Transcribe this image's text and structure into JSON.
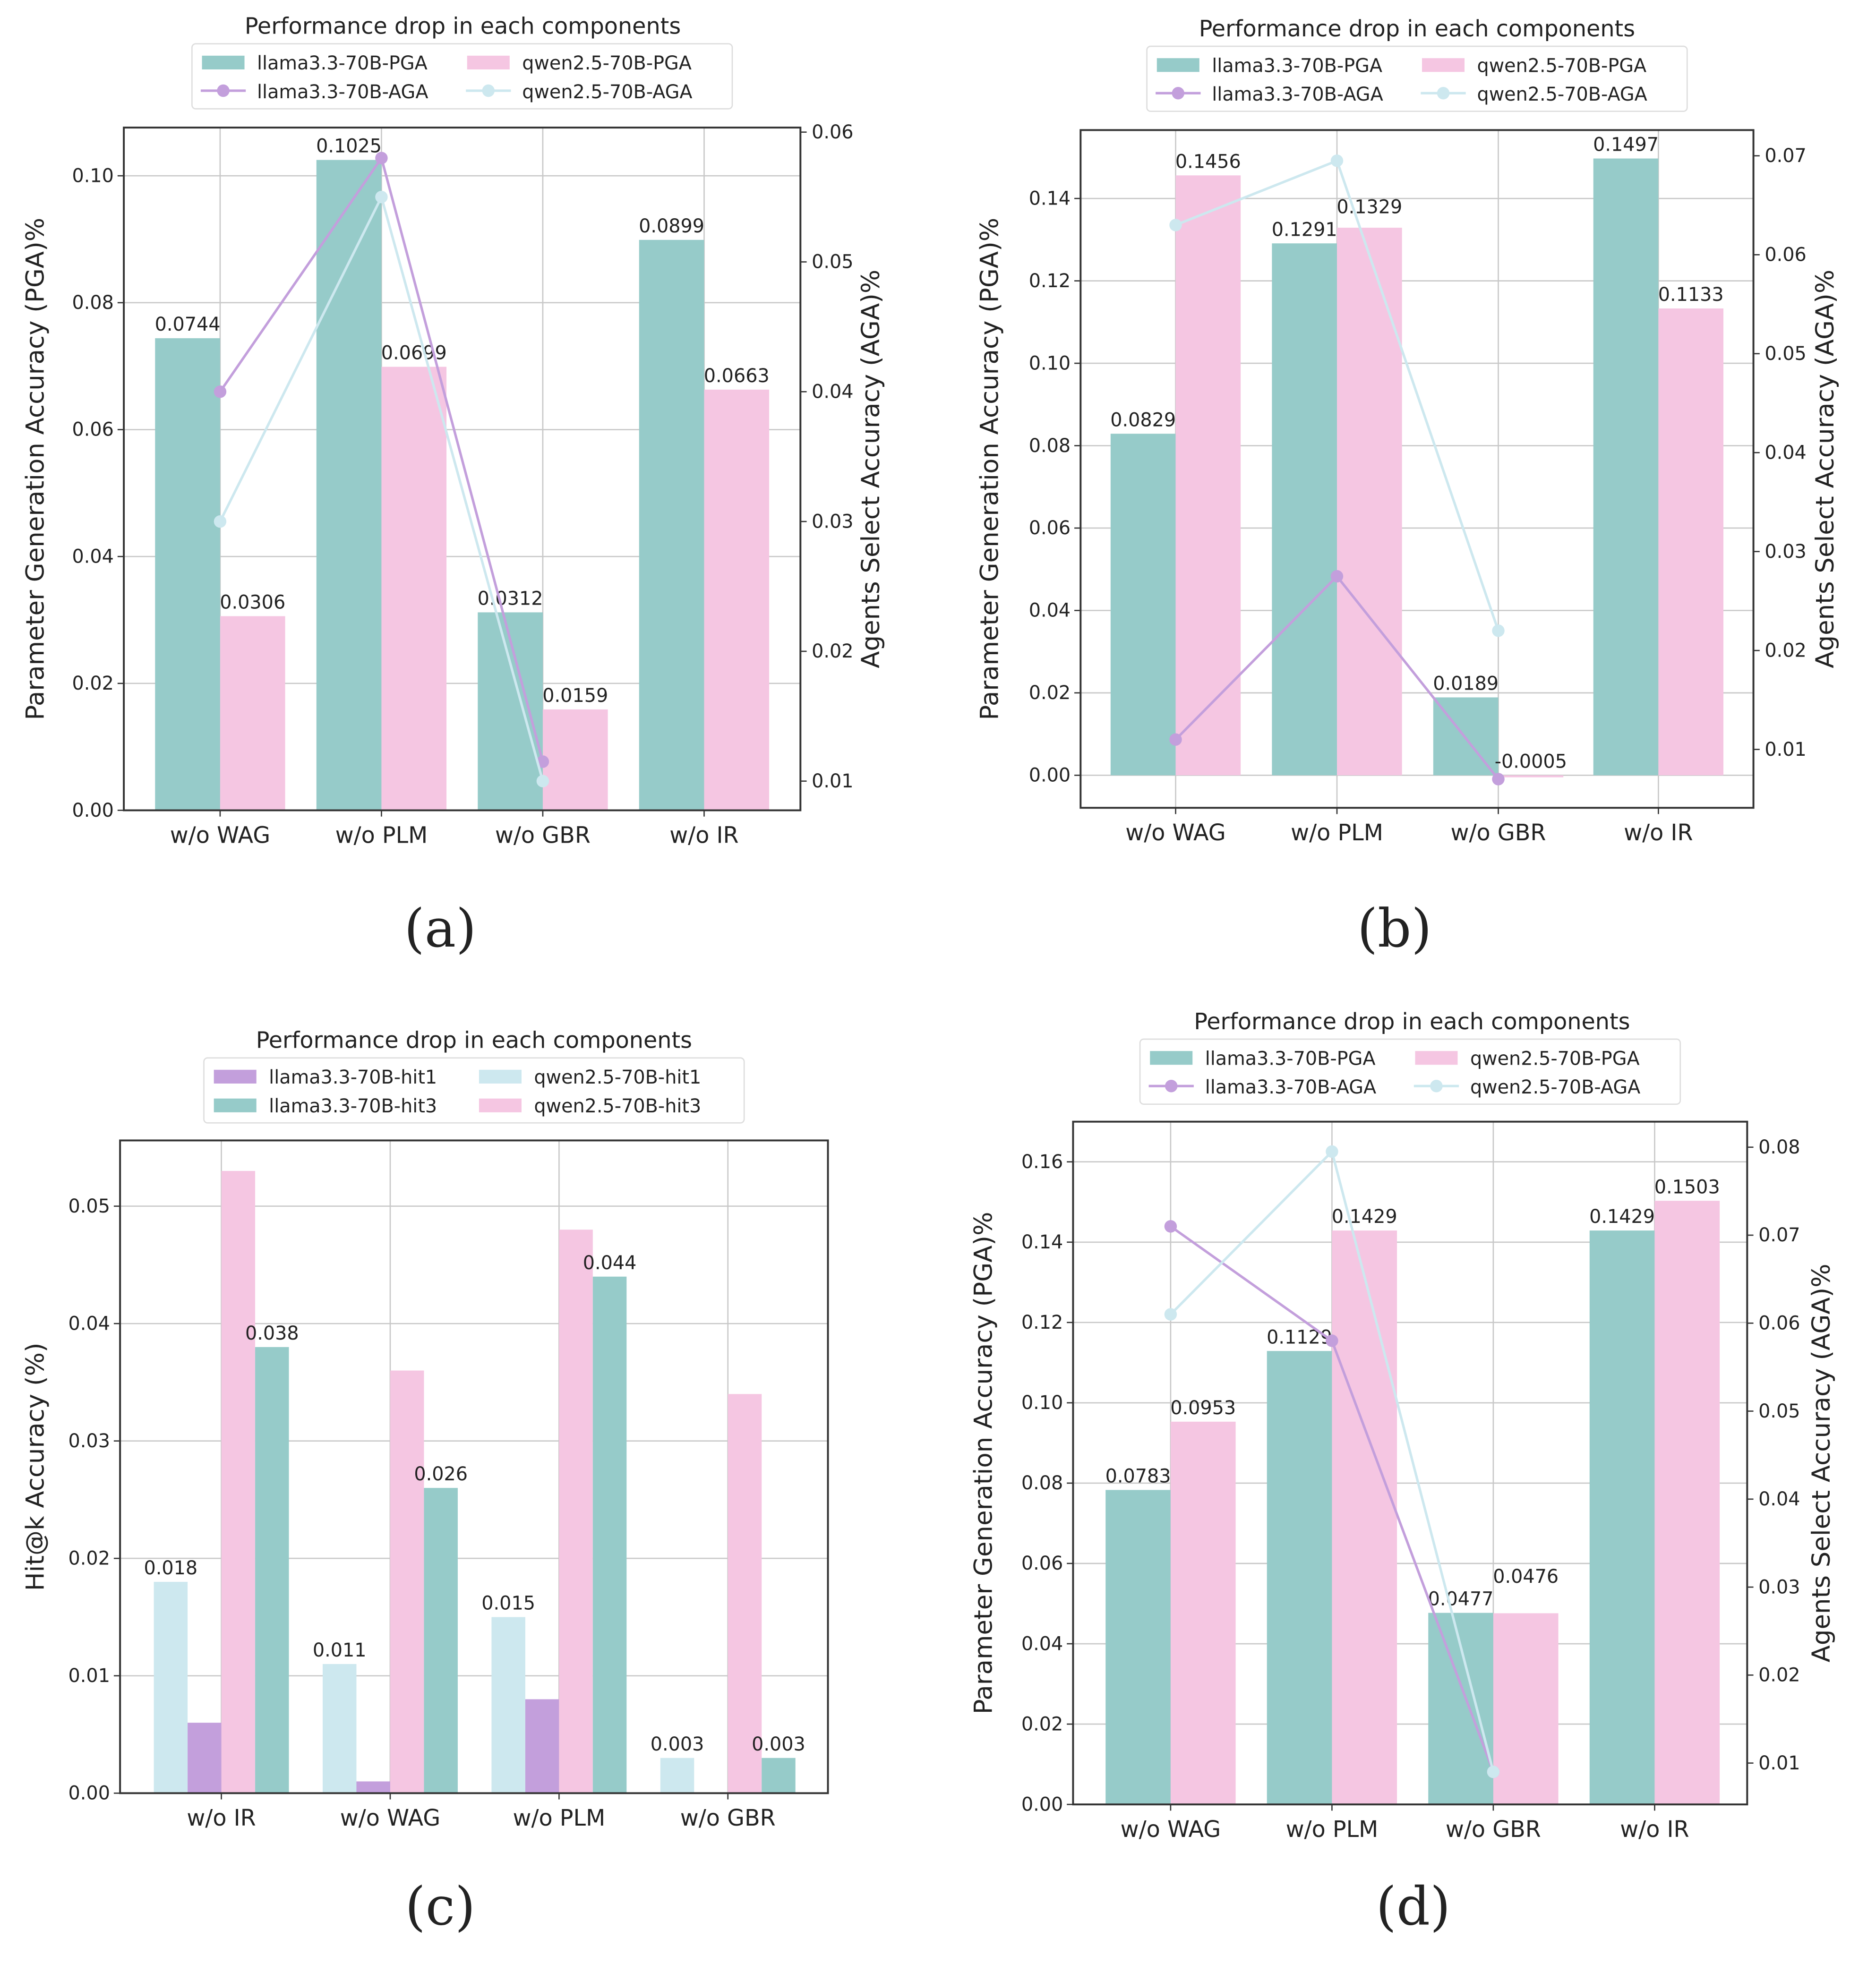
{
  "colors": {
    "llama_pga": "#96cbc9",
    "qwen_pga": "#f5c6e2",
    "llama_aga": "#c39fdc",
    "qwen_aga": "#cde8ef",
    "llama_hit1": "#c39fdc",
    "qwen_hit1": "#cde8ef",
    "llama_hit3": "#96cbc9",
    "qwen_hit3": "#f5c6e2"
  },
  "chart_data": [
    {
      "type": "bar+line",
      "caption": "(a)",
      "title": "Performance drop in each components",
      "ylabel": "Parameter Generation Accuracy (PGA)%",
      "y2label": "Agents Select Accuracy (AGA)%",
      "categories": [
        "w/o WAG",
        "w/o PLM",
        "w/o GBR",
        "w/o IR"
      ],
      "ylim": [
        0,
        0.1076
      ],
      "y2lim": [
        0.00775,
        0.06035
      ],
      "yticks": [
        "0.00",
        "0.02",
        "0.04",
        "0.06",
        "0.08",
        "0.10"
      ],
      "y2ticks": [
        "0.01",
        "0.02",
        "0.03",
        "0.04",
        "0.05",
        "0.06"
      ],
      "bars": [
        {
          "name": "llama3.3-70B-PGA",
          "color": "llama_pga",
          "values": [
            0.0744,
            0.1025,
            0.0312,
            0.0899
          ],
          "labels": [
            "0.0744",
            "0.1025",
            "0.0312",
            "0.0899"
          ]
        },
        {
          "name": "qwen2.5-70B-PGA",
          "color": "qwen_pga",
          "values": [
            0.0306,
            0.0699,
            0.0159,
            0.0663
          ],
          "labels": [
            "0.0306",
            "0.0699",
            "0.0159",
            "0.0663"
          ]
        }
      ],
      "lines": [
        {
          "name": "llama3.3-70B-AGA",
          "color": "llama_aga",
          "values": [
            0.04,
            0.058,
            0.0115,
            null
          ]
        },
        {
          "name": "qwen2.5-70B-AGA",
          "color": "qwen_aga",
          "values": [
            0.03,
            0.055,
            0.01,
            null
          ]
        }
      ]
    },
    {
      "type": "bar+line",
      "caption": "(b)",
      "title": "Performance drop in each components",
      "ylabel": "Parameter Generation Accuracy (PGA)%",
      "y2label": "Agents Select Accuracy (AGA)%",
      "categories": [
        "w/o WAG",
        "w/o PLM",
        "w/o GBR",
        "w/o IR"
      ],
      "ylim": [
        -0.0079,
        0.1566
      ],
      "y2lim": [
        0.0041,
        0.0726
      ],
      "yticks": [
        "0.00",
        "0.02",
        "0.04",
        "0.06",
        "0.08",
        "0.10",
        "0.12",
        "0.14"
      ],
      "y2ticks": [
        "0.01",
        "0.02",
        "0.03",
        "0.04",
        "0.05",
        "0.06",
        "0.07"
      ],
      "bars": [
        {
          "name": "llama3.3-70B-PGA",
          "color": "llama_pga",
          "values": [
            0.0829,
            0.1291,
            0.0189,
            0.1497
          ],
          "labels": [
            "0.0829",
            "0.1291",
            "0.0189",
            "0.1497"
          ]
        },
        {
          "name": "qwen2.5-70B-PGA",
          "color": "qwen_pga",
          "values": [
            0.1456,
            0.1329,
            -0.0005,
            0.1133
          ],
          "labels": [
            "0.1456",
            "0.1329",
            "-0.0005",
            "0.1133"
          ]
        }
      ],
      "lines": [
        {
          "name": "llama3.3-70B-AGA",
          "color": "llama_aga",
          "values": [
            0.011,
            0.0275,
            0.007,
            null
          ]
        },
        {
          "name": "qwen2.5-70B-AGA",
          "color": "qwen_aga",
          "values": [
            0.063,
            0.0695,
            0.022,
            null
          ]
        }
      ]
    },
    {
      "type": "bar",
      "caption": "(c)",
      "title": "Performance drop in each components",
      "ylabel": "Hit@k Accuracy (%)",
      "categories": [
        "w/o IR",
        "w/o WAG",
        "w/o PLM",
        "w/o GBR"
      ],
      "ylim": [
        0,
        0.0556
      ],
      "yticks": [
        "0.00",
        "0.01",
        "0.02",
        "0.03",
        "0.04",
        "0.05"
      ],
      "legend_order": [
        1,
        0,
        3,
        2
      ],
      "bars": [
        {
          "name": "qwen2.5-70B-hit1",
          "color": "qwen_hit1",
          "values": [
            0.018,
            0.011,
            0.015,
            0.003
          ],
          "labels": [
            "0.018",
            "0.011",
            "0.015",
            "0.003"
          ]
        },
        {
          "name": "llama3.3-70B-hit1",
          "color": "llama_hit1",
          "values": [
            0.006,
            0.001,
            0.008,
            0.0
          ],
          "labels": []
        },
        {
          "name": "qwen2.5-70B-hit3",
          "color": "qwen_hit3",
          "values": [
            0.053,
            0.036,
            0.048,
            0.034
          ],
          "labels": []
        },
        {
          "name": "llama3.3-70B-hit3",
          "color": "llama_hit3",
          "values": [
            0.038,
            0.026,
            0.044,
            0.003
          ],
          "labels": [
            "0.038",
            "0.026",
            "0.044",
            "0.003"
          ]
        }
      ],
      "lines": []
    },
    {
      "type": "bar+line",
      "caption": "(d)",
      "title": "Performance drop in each components",
      "ylabel": "Parameter Generation Accuracy (PGA)%",
      "y2label": "Agents Select Accuracy (AGA)%",
      "categories": [
        "w/o WAG",
        "w/o PLM",
        "w/o GBR",
        "w/o IR"
      ],
      "ylim": [
        0,
        0.17
      ],
      "y2lim": [
        0.0053,
        0.0829
      ],
      "yticks": [
        "0.00",
        "0.02",
        "0.04",
        "0.06",
        "0.08",
        "0.10",
        "0.12",
        "0.14",
        "0.16"
      ],
      "y2ticks": [
        "0.01",
        "0.02",
        "0.03",
        "0.04",
        "0.05",
        "0.06",
        "0.07",
        "0.08"
      ],
      "bars": [
        {
          "name": "llama3.3-70B-PGA",
          "color": "llama_pga",
          "values": [
            0.0783,
            0.1129,
            0.0477,
            0.1429
          ],
          "labels": [
            "0.0783",
            "0.1129",
            "0.0477",
            "0.1429"
          ]
        },
        {
          "name": "qwen2.5-70B-PGA",
          "color": "qwen_pga",
          "values": [
            0.0953,
            0.1429,
            0.0476,
            0.1503
          ],
          "labels": [
            "0.0953",
            "0.1429",
            "0.0476",
            "0.1503"
          ]
        }
      ],
      "lines": [
        {
          "name": "llama3.3-70B-AGA",
          "color": "llama_aga",
          "values": [
            0.071,
            0.058,
            0.009,
            null
          ]
        },
        {
          "name": "qwen2.5-70B-AGA",
          "color": "qwen_aga",
          "values": [
            0.061,
            0.0795,
            0.009,
            null
          ]
        }
      ]
    }
  ]
}
